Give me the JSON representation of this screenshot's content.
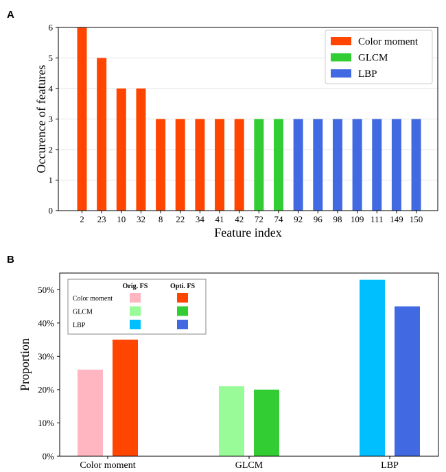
{
  "colors": {
    "color_moment": "#ff4500",
    "glcm": "#32cd32",
    "lbp": "#4169e1",
    "orig_color_moment": "#ffb6c1",
    "orig_glcm": "#98fb98",
    "orig_lbp": "#00bfff",
    "grid": "#e6e6e6",
    "axis": "#000000"
  },
  "chart_data": [
    {
      "panel_label": "A",
      "type": "bar",
      "xlabel": "Feature index",
      "ylabel": "Occurence of features",
      "ylim": [
        0,
        6
      ],
      "yticks": [
        0,
        1,
        2,
        3,
        4,
        5,
        6
      ],
      "grid": true,
      "legend_position": "top-right",
      "categories": [
        "2",
        "23",
        "10",
        "32",
        "8",
        "22",
        "34",
        "41",
        "42",
        "72",
        "74",
        "92",
        "96",
        "98",
        "109",
        "111",
        "149",
        "150"
      ],
      "values": [
        6,
        5,
        4,
        4,
        3,
        3,
        3,
        3,
        3,
        3,
        3,
        3,
        3,
        3,
        3,
        3,
        3,
        3
      ],
      "groups": [
        "Color moment",
        "Color moment",
        "Color moment",
        "Color moment",
        "Color moment",
        "Color moment",
        "Color moment",
        "Color moment",
        "Color moment",
        "GLCM",
        "GLCM",
        "LBP",
        "LBP",
        "LBP",
        "LBP",
        "LBP",
        "LBP",
        "LBP"
      ],
      "legend": [
        {
          "name": "Color moment",
          "color": "#ff4500"
        },
        {
          "name": "GLCM",
          "color": "#32cd32"
        },
        {
          "name": "LBP",
          "color": "#4169e1"
        }
      ]
    },
    {
      "panel_label": "B",
      "type": "bar",
      "xlabel": "",
      "ylabel": "Proportion",
      "ylim": [
        0,
        55
      ],
      "yticks": [
        0,
        10,
        20,
        30,
        40,
        50
      ],
      "ytick_labels": [
        "0%",
        "10%",
        "20%",
        "30%",
        "40%",
        "50%"
      ],
      "grid": false,
      "legend_position": "top-left",
      "categories": [
        "Color moment",
        "GLCM",
        "LBP"
      ],
      "series": [
        {
          "name": "Orig. FS",
          "values": [
            26,
            21,
            53
          ],
          "colors": [
            "#ffb6c1",
            "#98fb98",
            "#00bfff"
          ]
        },
        {
          "name": "Opti. FS",
          "values": [
            35,
            20,
            45
          ],
          "colors": [
            "#ff4500",
            "#32cd32",
            "#4169e1"
          ]
        }
      ],
      "legend_rows": [
        "Color moment",
        "GLCM",
        "LBP"
      ],
      "legend_cols": [
        "Orig. FS",
        "Opti. FS"
      ]
    }
  ]
}
